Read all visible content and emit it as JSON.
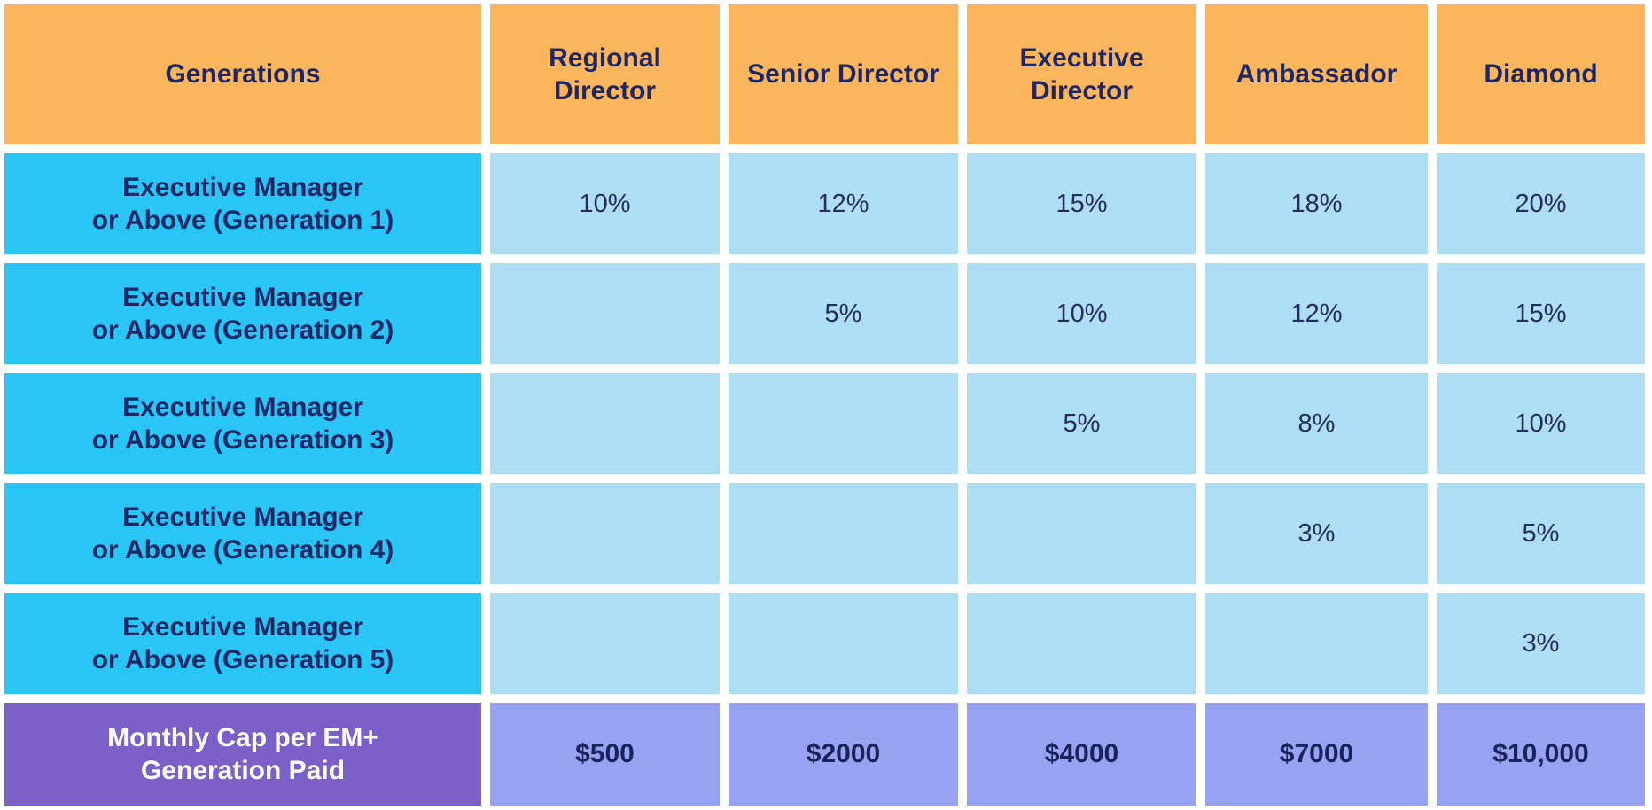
{
  "colors": {
    "header_bg": "#FBB55D",
    "row_label_bg": "#29C5F6",
    "value_cell_bg": "#AEDEF3",
    "footer_label_bg": "#7B60C8",
    "footer_value_bg": "#97A2F3",
    "text_navy": "#1E2761",
    "footer_label_text": "#FFFFFF",
    "gap_color": "#FFFFFF"
  },
  "chart_data": {
    "type": "table",
    "title": "",
    "columns": [
      "Generations",
      "Regional Director",
      "Senior Director",
      "Executive Director",
      "Ambassador",
      "Diamond"
    ],
    "rows": [
      {
        "label": "Executive Manager or Above (Generation 1)",
        "label_lines": [
          "Executive Manager",
          "or Above (Generation 1)"
        ],
        "values": [
          "10%",
          "12%",
          "15%",
          "18%",
          "20%"
        ]
      },
      {
        "label": "Executive Manager or Above (Generation 2)",
        "label_lines": [
          "Executive Manager",
          "or Above (Generation 2)"
        ],
        "values": [
          "",
          "5%",
          "10%",
          "12%",
          "15%"
        ]
      },
      {
        "label": "Executive Manager or Above (Generation 3)",
        "label_lines": [
          "Executive Manager",
          "or Above (Generation 3)"
        ],
        "values": [
          "",
          "",
          "5%",
          "8%",
          "10%"
        ]
      },
      {
        "label": "Executive Manager or Above (Generation 4)",
        "label_lines": [
          "Executive Manager",
          "or Above (Generation 4)"
        ],
        "values": [
          "",
          "",
          "",
          "3%",
          "5%"
        ]
      },
      {
        "label": "Executive Manager or Above (Generation 5)",
        "label_lines": [
          "Executive Manager",
          "or Above (Generation 5)"
        ],
        "values": [
          "",
          "",
          "",
          "",
          "3%"
        ]
      }
    ],
    "footer": {
      "label": "Monthly Cap per EM+ Generation Paid",
      "label_lines": [
        "Monthly Cap per EM+",
        "Generation Paid"
      ],
      "values": [
        "$500",
        "$2000",
        "$4000",
        "$7000",
        "$10,000"
      ]
    }
  }
}
